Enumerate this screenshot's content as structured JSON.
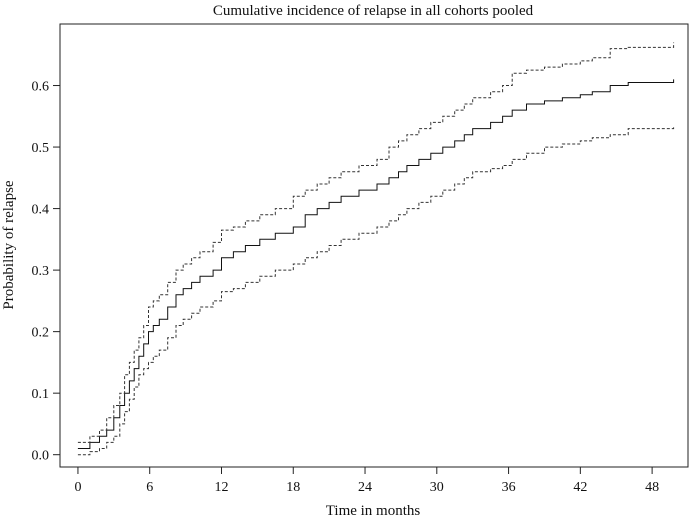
{
  "chart_data": {
    "type": "line",
    "title": "Cumulative incidence of relapse in all cohorts pooled",
    "xlabel": "Time in months",
    "ylabel": "Probability of relapse",
    "xlim": [
      -1.5,
      51
    ],
    "ylim": [
      -0.02,
      0.7
    ],
    "x_ticks": [
      0,
      6,
      12,
      18,
      24,
      30,
      36,
      42,
      48
    ],
    "y_ticks": [
      0.0,
      0.1,
      0.2,
      0.3,
      0.4,
      0.5,
      0.6
    ],
    "y_tick_labels": [
      "0.0",
      "0.1",
      "0.2",
      "0.3",
      "0.4",
      "0.5",
      "0.6"
    ],
    "grid": false,
    "legend": "none",
    "series": [
      {
        "style": "solid",
        "x": [
          0,
          1.0,
          1.8,
          2.4,
          3.0,
          3.5,
          3.9,
          4.3,
          4.7,
          5.1,
          5.5,
          5.9,
          6.3,
          6.8,
          7.5,
          8.2,
          8.8,
          9.5,
          10.2,
          11.3,
          12.0,
          13.0,
          14.0,
          15.2,
          16.5,
          18.0,
          19.0,
          20.0,
          21.0,
          22.0,
          23.5,
          25.0,
          26.0,
          26.8,
          27.5,
          28.5,
          29.5,
          30.5,
          31.5,
          32.3,
          33.0,
          34.5,
          35.5,
          36.3,
          37.5,
          39.0,
          40.5,
          42.0,
          43.0,
          44.5,
          46.0,
          49.8
        ],
        "y": [
          0.01,
          0.02,
          0.03,
          0.04,
          0.06,
          0.08,
          0.1,
          0.12,
          0.14,
          0.16,
          0.18,
          0.2,
          0.21,
          0.22,
          0.24,
          0.26,
          0.27,
          0.28,
          0.29,
          0.3,
          0.32,
          0.33,
          0.34,
          0.35,
          0.36,
          0.37,
          0.39,
          0.4,
          0.41,
          0.42,
          0.43,
          0.44,
          0.45,
          0.46,
          0.47,
          0.48,
          0.49,
          0.5,
          0.51,
          0.52,
          0.53,
          0.54,
          0.55,
          0.56,
          0.57,
          0.575,
          0.58,
          0.585,
          0.59,
          0.6,
          0.605,
          0.61
        ]
      },
      {
        "style": "dashed",
        "x": [
          0,
          1.0,
          1.8,
          2.4,
          3.0,
          3.5,
          3.9,
          4.3,
          4.7,
          5.1,
          5.5,
          5.9,
          6.3,
          6.8,
          7.5,
          8.2,
          8.8,
          9.5,
          10.2,
          11.3,
          12.0,
          13.0,
          14.0,
          15.2,
          16.5,
          18.0,
          19.0,
          20.0,
          21.0,
          22.0,
          23.5,
          25.0,
          26.0,
          26.8,
          27.5,
          28.5,
          29.5,
          30.5,
          31.5,
          32.3,
          33.0,
          34.5,
          35.5,
          36.3,
          37.5,
          39.0,
          40.5,
          42.0,
          43.0,
          44.5,
          46.0,
          49.8
        ],
        "y": [
          0.02,
          0.03,
          0.04,
          0.06,
          0.08,
          0.1,
          0.13,
          0.15,
          0.17,
          0.19,
          0.21,
          0.24,
          0.25,
          0.26,
          0.28,
          0.3,
          0.31,
          0.32,
          0.33,
          0.345,
          0.365,
          0.37,
          0.38,
          0.39,
          0.4,
          0.42,
          0.43,
          0.44,
          0.45,
          0.46,
          0.47,
          0.48,
          0.5,
          0.51,
          0.52,
          0.53,
          0.54,
          0.55,
          0.56,
          0.57,
          0.58,
          0.59,
          0.6,
          0.62,
          0.625,
          0.63,
          0.635,
          0.64,
          0.645,
          0.66,
          0.662,
          0.67
        ]
      },
      {
        "style": "dashed",
        "x": [
          0,
          1.0,
          1.8,
          2.4,
          3.0,
          3.5,
          3.9,
          4.3,
          4.7,
          5.1,
          5.5,
          5.9,
          6.3,
          6.8,
          7.5,
          8.2,
          8.8,
          9.5,
          10.2,
          11.3,
          12.0,
          13.0,
          14.0,
          15.2,
          16.5,
          18.0,
          19.0,
          20.0,
          21.0,
          22.0,
          23.5,
          25.0,
          26.0,
          26.8,
          27.5,
          28.5,
          29.5,
          30.5,
          31.5,
          32.3,
          33.0,
          34.5,
          35.5,
          36.3,
          37.5,
          39.0,
          40.5,
          42.0,
          43.0,
          44.5,
          46.0,
          49.8
        ],
        "y": [
          0.0,
          0.005,
          0.01,
          0.02,
          0.03,
          0.05,
          0.07,
          0.09,
          0.11,
          0.13,
          0.14,
          0.15,
          0.16,
          0.17,
          0.19,
          0.21,
          0.22,
          0.23,
          0.24,
          0.25,
          0.265,
          0.27,
          0.28,
          0.29,
          0.3,
          0.31,
          0.32,
          0.33,
          0.34,
          0.35,
          0.36,
          0.37,
          0.38,
          0.39,
          0.4,
          0.41,
          0.42,
          0.43,
          0.44,
          0.45,
          0.46,
          0.465,
          0.47,
          0.48,
          0.49,
          0.5,
          0.505,
          0.51,
          0.515,
          0.52,
          0.53,
          0.535
        ]
      }
    ]
  }
}
